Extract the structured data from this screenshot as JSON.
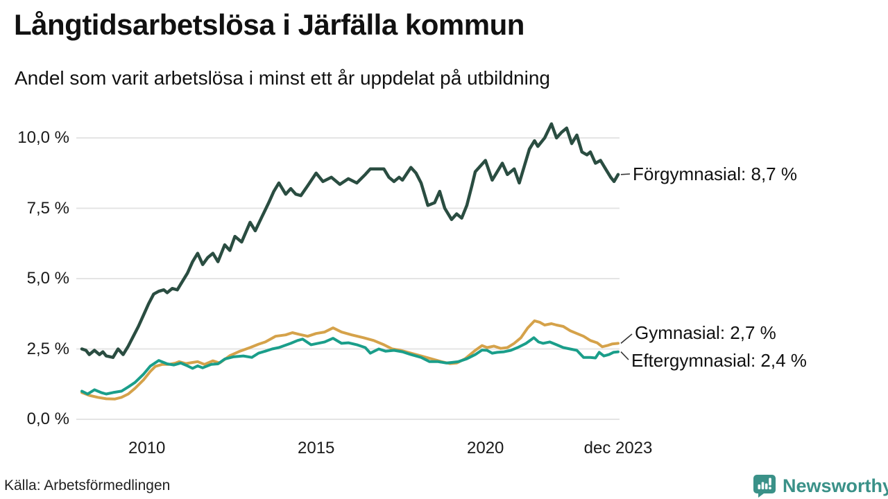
{
  "header": {
    "title": "Långtidsarbetslösa i Järfälla kommun",
    "subtitle": "Andel som varit arbetslösa i minst ett år uppdelat på utbildning"
  },
  "footer": {
    "source": "Källa: Arbetsförmedlingen",
    "brand_name": "Newsworthy",
    "brand_color": "#3a9188"
  },
  "chart_data": {
    "type": "line",
    "title": "Långtidsarbetslösa i Järfälla kommun",
    "subtitle": "Andel som varit arbetslösa i minst ett år uppdelat på utbildning",
    "x_unit": "year (decimal, monthly data jan 2008 – dec 2023)",
    "x_range": [
      2008.08,
      2023.92
    ],
    "ylim": [
      0,
      10.5
    ],
    "grid": "horizontal",
    "grid_color": "#e4e4e4",
    "y_ticks": [
      {
        "value": 0,
        "label": "0,0 %"
      },
      {
        "value": 2.5,
        "label": "2,5 %"
      },
      {
        "value": 5,
        "label": "5,0 %"
      },
      {
        "value": 7.5,
        "label": "7,5 %"
      },
      {
        "value": 10,
        "label": "10,0 %"
      }
    ],
    "x_ticks": [
      {
        "value": 2010,
        "label": "2010"
      },
      {
        "value": 2015,
        "label": "2015"
      },
      {
        "value": 2020,
        "label": "2020"
      },
      {
        "value": 2023.92,
        "label": "dec 2023"
      }
    ],
    "legend_position": "right-end-labels",
    "series": [
      {
        "name": "Förgymnasial",
        "end_label": "Förgymnasial: 8,7 %",
        "end_value": 8.7,
        "color": "#2a4d41",
        "points": [
          [
            2008.08,
            2.5
          ],
          [
            2008.2,
            2.45
          ],
          [
            2008.3,
            2.3
          ],
          [
            2008.45,
            2.45
          ],
          [
            2008.6,
            2.3
          ],
          [
            2008.7,
            2.4
          ],
          [
            2008.8,
            2.25
          ],
          [
            2009.0,
            2.2
          ],
          [
            2009.15,
            2.5
          ],
          [
            2009.3,
            2.3
          ],
          [
            2009.45,
            2.6
          ],
          [
            2009.6,
            2.95
          ],
          [
            2009.75,
            3.3
          ],
          [
            2009.9,
            3.7
          ],
          [
            2010.05,
            4.1
          ],
          [
            2010.2,
            4.45
          ],
          [
            2010.35,
            4.55
          ],
          [
            2010.5,
            4.6
          ],
          [
            2010.6,
            4.5
          ],
          [
            2010.75,
            4.65
          ],
          [
            2010.9,
            4.6
          ],
          [
            2011.0,
            4.8
          ],
          [
            2011.2,
            5.2
          ],
          [
            2011.35,
            5.6
          ],
          [
            2011.5,
            5.9
          ],
          [
            2011.65,
            5.5
          ],
          [
            2011.8,
            5.75
          ],
          [
            2011.95,
            5.9
          ],
          [
            2012.1,
            5.6
          ],
          [
            2012.3,
            6.2
          ],
          [
            2012.45,
            6.0
          ],
          [
            2012.6,
            6.5
          ],
          [
            2012.8,
            6.3
          ],
          [
            2013.05,
            7.0
          ],
          [
            2013.2,
            6.7
          ],
          [
            2013.4,
            7.2
          ],
          [
            2013.6,
            7.7
          ],
          [
            2013.75,
            8.1
          ],
          [
            2013.9,
            8.4
          ],
          [
            2014.1,
            8.0
          ],
          [
            2014.25,
            8.2
          ],
          [
            2014.4,
            8.0
          ],
          [
            2014.55,
            7.95
          ],
          [
            2014.75,
            8.3
          ],
          [
            2015.0,
            8.75
          ],
          [
            2015.2,
            8.45
          ],
          [
            2015.45,
            8.6
          ],
          [
            2015.7,
            8.35
          ],
          [
            2015.95,
            8.55
          ],
          [
            2016.2,
            8.4
          ],
          [
            2016.45,
            8.7
          ],
          [
            2016.6,
            8.9
          ],
          [
            2016.8,
            8.9
          ],
          [
            2017.0,
            8.9
          ],
          [
            2017.15,
            8.6
          ],
          [
            2017.3,
            8.45
          ],
          [
            2017.45,
            8.6
          ],
          [
            2017.55,
            8.5
          ],
          [
            2017.8,
            8.95
          ],
          [
            2017.95,
            8.75
          ],
          [
            2018.1,
            8.4
          ],
          [
            2018.3,
            7.6
          ],
          [
            2018.5,
            7.7
          ],
          [
            2018.65,
            8.1
          ],
          [
            2018.8,
            7.5
          ],
          [
            2019.0,
            7.1
          ],
          [
            2019.15,
            7.3
          ],
          [
            2019.3,
            7.15
          ],
          [
            2019.45,
            7.6
          ],
          [
            2019.6,
            8.3
          ],
          [
            2019.7,
            8.8
          ],
          [
            2019.85,
            9.0
          ],
          [
            2020.0,
            9.2
          ],
          [
            2020.2,
            8.5
          ],
          [
            2020.35,
            8.8
          ],
          [
            2020.5,
            9.1
          ],
          [
            2020.65,
            8.7
          ],
          [
            2020.85,
            8.9
          ],
          [
            2021.0,
            8.4
          ],
          [
            2021.15,
            9.0
          ],
          [
            2021.3,
            9.6
          ],
          [
            2021.45,
            9.9
          ],
          [
            2021.55,
            9.7
          ],
          [
            2021.75,
            10.0
          ],
          [
            2021.95,
            10.5
          ],
          [
            2022.1,
            10.0
          ],
          [
            2022.25,
            10.2
          ],
          [
            2022.4,
            10.35
          ],
          [
            2022.55,
            9.8
          ],
          [
            2022.7,
            10.1
          ],
          [
            2022.85,
            9.5
          ],
          [
            2023.0,
            9.4
          ],
          [
            2023.1,
            9.5
          ],
          [
            2023.25,
            9.1
          ],
          [
            2023.4,
            9.2
          ],
          [
            2023.55,
            8.9
          ],
          [
            2023.7,
            8.6
          ],
          [
            2023.8,
            8.45
          ],
          [
            2023.92,
            8.7
          ]
        ]
      },
      {
        "name": "Gymnasial",
        "end_label": "Gymnasial: 2,7 %",
        "end_value": 2.7,
        "color": "#d5a24a",
        "points": [
          [
            2008.08,
            0.95
          ],
          [
            2008.3,
            0.85
          ],
          [
            2008.55,
            0.78
          ],
          [
            2008.8,
            0.73
          ],
          [
            2009.05,
            0.72
          ],
          [
            2009.25,
            0.78
          ],
          [
            2009.45,
            0.9
          ],
          [
            2009.65,
            1.1
          ],
          [
            2009.9,
            1.4
          ],
          [
            2010.1,
            1.7
          ],
          [
            2010.25,
            1.88
          ],
          [
            2010.45,
            1.95
          ],
          [
            2010.65,
            1.95
          ],
          [
            2010.85,
            2.0
          ],
          [
            2010.95,
            2.05
          ],
          [
            2011.15,
            1.98
          ],
          [
            2011.35,
            2.02
          ],
          [
            2011.5,
            2.05
          ],
          [
            2011.7,
            1.95
          ],
          [
            2011.95,
            2.08
          ],
          [
            2012.15,
            2.0
          ],
          [
            2012.45,
            2.26
          ],
          [
            2012.75,
            2.42
          ],
          [
            2013.05,
            2.55
          ],
          [
            2013.3,
            2.67
          ],
          [
            2013.5,
            2.75
          ],
          [
            2013.8,
            2.95
          ],
          [
            2014.1,
            3.0
          ],
          [
            2014.3,
            3.08
          ],
          [
            2014.5,
            3.02
          ],
          [
            2014.75,
            2.95
          ],
          [
            2015.0,
            3.05
          ],
          [
            2015.25,
            3.1
          ],
          [
            2015.5,
            3.25
          ],
          [
            2015.75,
            3.1
          ],
          [
            2016.05,
            3.0
          ],
          [
            2016.4,
            2.9
          ],
          [
            2016.7,
            2.8
          ],
          [
            2017.0,
            2.65
          ],
          [
            2017.25,
            2.5
          ],
          [
            2017.5,
            2.45
          ],
          [
            2017.8,
            2.35
          ],
          [
            2018.1,
            2.25
          ],
          [
            2018.4,
            2.15
          ],
          [
            2018.7,
            2.05
          ],
          [
            2018.95,
            1.98
          ],
          [
            2019.15,
            2.0
          ],
          [
            2019.4,
            2.15
          ],
          [
            2019.7,
            2.45
          ],
          [
            2019.9,
            2.62
          ],
          [
            2020.05,
            2.55
          ],
          [
            2020.25,
            2.6
          ],
          [
            2020.45,
            2.52
          ],
          [
            2020.65,
            2.55
          ],
          [
            2020.85,
            2.7
          ],
          [
            2021.05,
            2.9
          ],
          [
            2021.25,
            3.25
          ],
          [
            2021.45,
            3.5
          ],
          [
            2021.6,
            3.45
          ],
          [
            2021.75,
            3.35
          ],
          [
            2021.95,
            3.4
          ],
          [
            2022.1,
            3.35
          ],
          [
            2022.3,
            3.3
          ],
          [
            2022.5,
            3.15
          ],
          [
            2022.7,
            3.05
          ],
          [
            2022.9,
            2.95
          ],
          [
            2023.1,
            2.8
          ],
          [
            2023.3,
            2.72
          ],
          [
            2023.45,
            2.58
          ],
          [
            2023.6,
            2.62
          ],
          [
            2023.75,
            2.68
          ],
          [
            2023.92,
            2.7
          ]
        ]
      },
      {
        "name": "Eftergymnasial",
        "end_label": "Eftergymnasial: 2,4 %",
        "end_value": 2.4,
        "color": "#1a9e8a",
        "points": [
          [
            2008.08,
            1.0
          ],
          [
            2008.25,
            0.9
          ],
          [
            2008.45,
            1.05
          ],
          [
            2008.65,
            0.95
          ],
          [
            2008.8,
            0.9
          ],
          [
            2009.0,
            0.95
          ],
          [
            2009.25,
            1.0
          ],
          [
            2009.45,
            1.15
          ],
          [
            2009.65,
            1.31
          ],
          [
            2009.9,
            1.6
          ],
          [
            2010.1,
            1.89
          ],
          [
            2010.35,
            2.09
          ],
          [
            2010.6,
            1.97
          ],
          [
            2010.8,
            1.93
          ],
          [
            2011.0,
            2.0
          ],
          [
            2011.2,
            1.9
          ],
          [
            2011.35,
            1.81
          ],
          [
            2011.5,
            1.9
          ],
          [
            2011.65,
            1.83
          ],
          [
            2011.9,
            1.95
          ],
          [
            2012.1,
            1.97
          ],
          [
            2012.3,
            2.14
          ],
          [
            2012.55,
            2.22
          ],
          [
            2012.85,
            2.25
          ],
          [
            2013.1,
            2.2
          ],
          [
            2013.3,
            2.35
          ],
          [
            2013.5,
            2.42
          ],
          [
            2013.7,
            2.5
          ],
          [
            2013.9,
            2.55
          ],
          [
            2014.25,
            2.7
          ],
          [
            2014.45,
            2.8
          ],
          [
            2014.6,
            2.85
          ],
          [
            2014.85,
            2.65
          ],
          [
            2015.05,
            2.7
          ],
          [
            2015.25,
            2.75
          ],
          [
            2015.5,
            2.88
          ],
          [
            2015.75,
            2.7
          ],
          [
            2015.95,
            2.72
          ],
          [
            2016.2,
            2.65
          ],
          [
            2016.45,
            2.55
          ],
          [
            2016.6,
            2.35
          ],
          [
            2016.85,
            2.5
          ],
          [
            2017.05,
            2.42
          ],
          [
            2017.3,
            2.45
          ],
          [
            2017.55,
            2.4
          ],
          [
            2017.8,
            2.3
          ],
          [
            2018.1,
            2.2
          ],
          [
            2018.35,
            2.05
          ],
          [
            2018.6,
            2.05
          ],
          [
            2018.85,
            2.0
          ],
          [
            2019.0,
            2.02
          ],
          [
            2019.2,
            2.05
          ],
          [
            2019.45,
            2.15
          ],
          [
            2019.7,
            2.3
          ],
          [
            2019.9,
            2.46
          ],
          [
            2020.05,
            2.45
          ],
          [
            2020.2,
            2.35
          ],
          [
            2020.35,
            2.38
          ],
          [
            2020.55,
            2.4
          ],
          [
            2020.75,
            2.45
          ],
          [
            2020.95,
            2.55
          ],
          [
            2021.2,
            2.7
          ],
          [
            2021.43,
            2.9
          ],
          [
            2021.57,
            2.75
          ],
          [
            2021.7,
            2.7
          ],
          [
            2021.9,
            2.75
          ],
          [
            2022.1,
            2.65
          ],
          [
            2022.3,
            2.55
          ],
          [
            2022.5,
            2.5
          ],
          [
            2022.7,
            2.45
          ],
          [
            2022.9,
            2.2
          ],
          [
            2023.1,
            2.2
          ],
          [
            2023.25,
            2.18
          ],
          [
            2023.36,
            2.38
          ],
          [
            2023.5,
            2.25
          ],
          [
            2023.65,
            2.3
          ],
          [
            2023.78,
            2.38
          ],
          [
            2023.92,
            2.4
          ]
        ]
      }
    ]
  }
}
